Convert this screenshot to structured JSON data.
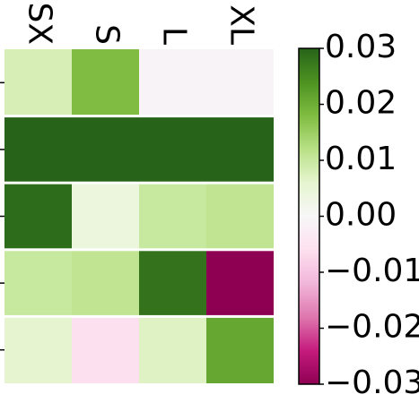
{
  "chart_data": {
    "type": "heatmap",
    "x": [
      "SX",
      "S",
      "L",
      "XL"
    ],
    "y": [
      null,
      null,
      null,
      null,
      null
    ],
    "values": [
      [
        0.008,
        0.018,
        -0.001,
        -0.001
      ],
      [
        0.03,
        0.03,
        0.03,
        0.03
      ],
      [
        0.029,
        0.004,
        0.01,
        0.011
      ],
      [
        0.01,
        0.011,
        0.028,
        -0.03
      ],
      [
        0.006,
        -0.006,
        0.007,
        0.021
      ]
    ],
    "colormap": "PiYG",
    "zlim": [
      -0.03,
      0.03
    ],
    "zticks": [
      {
        "value": -0.03,
        "label": "−0.03"
      },
      {
        "value": -0.02,
        "label": "−0.02"
      },
      {
        "value": -0.01,
        "label": "−0.01"
      },
      {
        "value": 0,
        "label": "0.00"
      },
      0.01,
      0.02,
      0.03
    ]
  }
}
